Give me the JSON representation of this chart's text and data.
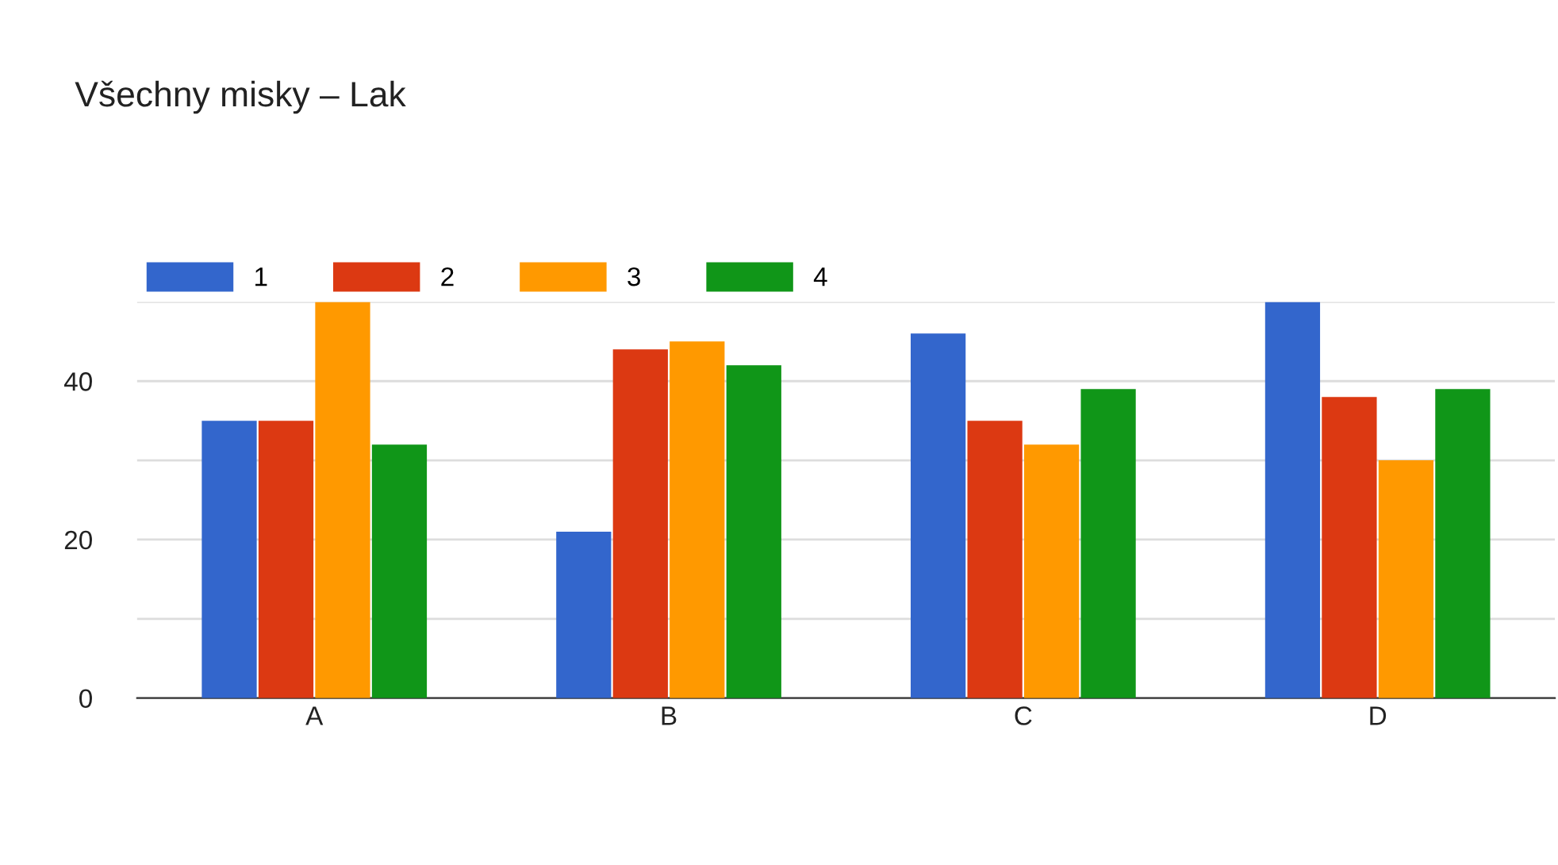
{
  "chart_data": {
    "type": "bar",
    "title": "Všechny misky – Lak",
    "categories": [
      "A",
      "B",
      "C",
      "D"
    ],
    "series": [
      {
        "name": "1",
        "color": "#3366cc",
        "values": [
          35,
          21,
          46,
          50
        ]
      },
      {
        "name": "2",
        "color": "#dc3912",
        "values": [
          35,
          44,
          35,
          38
        ]
      },
      {
        "name": "3",
        "color": "#ff9900",
        "values": [
          50,
          45,
          32,
          30
        ]
      },
      {
        "name": "4",
        "color": "#109618",
        "values": [
          32,
          42,
          39,
          39
        ]
      }
    ],
    "ylim": [
      0,
      50
    ],
    "yticks": [
      0,
      {
        "value": 10,
        "label": null
      },
      20,
      {
        "value": 30,
        "label": null
      },
      40,
      {
        "value": 50,
        "label": null
      }
    ],
    "grid": "y",
    "legend": "top left"
  }
}
